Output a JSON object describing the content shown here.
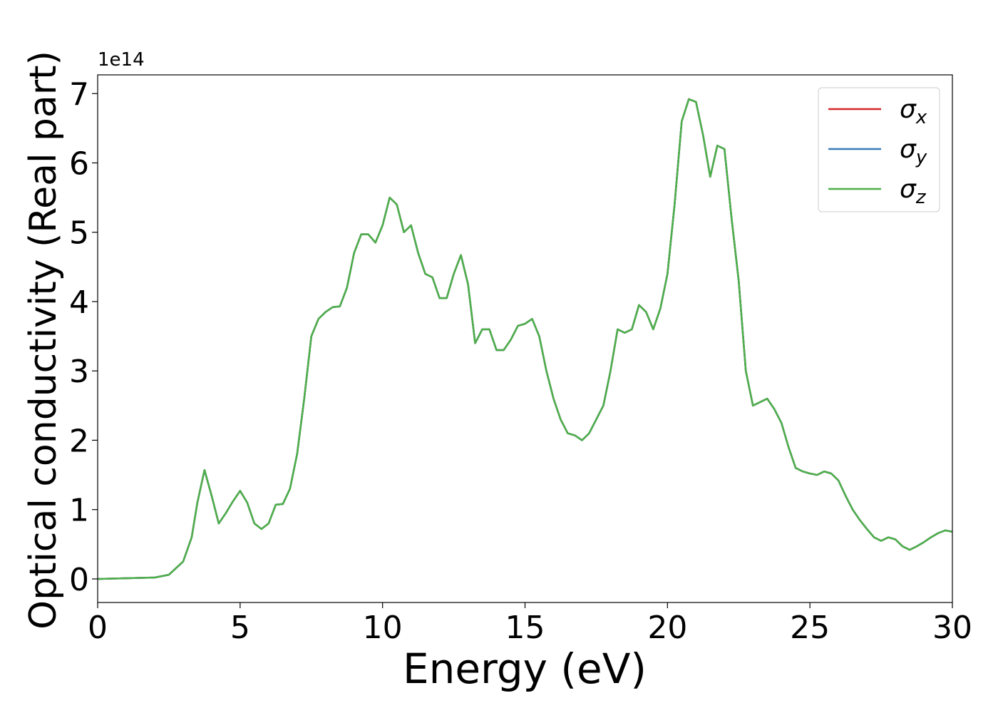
{
  "chart_data": {
    "type": "line",
    "xlabel": "Energy (eV)",
    "ylabel": "Optical conductivity (Real part)",
    "y_offset": "1e14",
    "x": [
      0,
      1,
      2,
      2.5,
      3,
      3.3,
      3.5,
      3.75,
      4,
      4.25,
      4.5,
      4.75,
      5,
      5.25,
      5.5,
      5.75,
      6,
      6.25,
      6.5,
      6.75,
      7,
      7.25,
      7.5,
      7.75,
      8,
      8.25,
      8.5,
      8.75,
      9,
      9.25,
      9.5,
      9.75,
      10,
      10.25,
      10.5,
      10.75,
      11,
      11.25,
      11.5,
      11.75,
      12,
      12.25,
      12.5,
      12.75,
      13,
      13.25,
      13.5,
      13.75,
      14,
      14.25,
      14.5,
      14.75,
      15,
      15.25,
      15.5,
      15.75,
      16,
      16.25,
      16.5,
      16.75,
      17,
      17.25,
      17.5,
      17.75,
      18,
      18.25,
      18.5,
      18.75,
      19,
      19.25,
      19.5,
      19.75,
      20,
      20.25,
      20.5,
      20.75,
      21,
      21.25,
      21.5,
      21.75,
      22,
      22.25,
      22.5,
      22.75,
      23,
      23.25,
      23.5,
      23.75,
      24,
      24.25,
      24.5,
      24.75,
      25,
      25.25,
      25.5,
      25.75,
      26,
      26.25,
      26.5,
      26.75,
      27,
      27.25,
      27.5,
      27.75,
      28,
      28.25,
      28.5,
      28.75,
      29,
      29.25,
      29.5,
      29.75,
      30
    ],
    "series": [
      {
        "name": "σx",
        "color": "#d62728",
        "values": [
          0,
          0.01,
          0.02,
          0.06,
          0.25,
          0.6,
          1.1,
          1.57,
          1.2,
          0.8,
          0.95,
          1.12,
          1.27,
          1.1,
          0.8,
          0.72,
          0.8,
          1.07,
          1.08,
          1.3,
          1.8,
          2.6,
          3.5,
          3.75,
          3.85,
          3.92,
          3.93,
          4.2,
          4.7,
          4.97,
          4.97,
          4.85,
          5.1,
          5.5,
          5.4,
          5.0,
          5.1,
          4.7,
          4.4,
          4.35,
          4.05,
          4.05,
          4.4,
          4.67,
          4.25,
          3.4,
          3.6,
          3.6,
          3.3,
          3.3,
          3.45,
          3.65,
          3.68,
          3.75,
          3.5,
          3.0,
          2.6,
          2.3,
          2.1,
          2.07,
          2.0,
          2.1,
          2.3,
          2.5,
          3.0,
          3.6,
          3.55,
          3.6,
          3.95,
          3.85,
          3.6,
          3.9,
          4.4,
          5.4,
          6.6,
          6.92,
          6.88,
          6.4,
          5.8,
          6.25,
          6.2,
          5.2,
          4.3,
          3.0,
          2.5,
          2.55,
          2.6,
          2.45,
          2.25,
          1.9,
          1.6,
          1.55,
          1.52,
          1.5,
          1.55,
          1.52,
          1.42,
          1.2,
          1.0,
          0.85,
          0.72,
          0.6,
          0.55,
          0.6,
          0.57,
          0.47,
          0.42,
          0.47,
          0.53,
          0.6,
          0.66,
          0.7,
          0.68
        ]
      },
      {
        "name": "σy",
        "color": "#377eb8",
        "values": [
          0,
          0.01,
          0.02,
          0.06,
          0.25,
          0.6,
          1.1,
          1.57,
          1.2,
          0.8,
          0.95,
          1.12,
          1.27,
          1.1,
          0.8,
          0.72,
          0.8,
          1.07,
          1.08,
          1.3,
          1.8,
          2.6,
          3.5,
          3.75,
          3.85,
          3.92,
          3.93,
          4.2,
          4.7,
          4.97,
          4.97,
          4.85,
          5.1,
          5.5,
          5.4,
          5.0,
          5.1,
          4.7,
          4.4,
          4.35,
          4.05,
          4.05,
          4.4,
          4.67,
          4.25,
          3.4,
          3.6,
          3.6,
          3.3,
          3.3,
          3.45,
          3.65,
          3.68,
          3.75,
          3.5,
          3.0,
          2.6,
          2.3,
          2.1,
          2.07,
          2.0,
          2.1,
          2.3,
          2.5,
          3.0,
          3.6,
          3.55,
          3.6,
          3.95,
          3.85,
          3.6,
          3.9,
          4.4,
          5.4,
          6.6,
          6.92,
          6.88,
          6.4,
          5.8,
          6.25,
          6.2,
          5.2,
          4.3,
          3.0,
          2.5,
          2.55,
          2.6,
          2.45,
          2.25,
          1.9,
          1.6,
          1.55,
          1.52,
          1.5,
          1.55,
          1.52,
          1.42,
          1.2,
          1.0,
          0.85,
          0.72,
          0.6,
          0.55,
          0.6,
          0.57,
          0.47,
          0.42,
          0.47,
          0.53,
          0.6,
          0.66,
          0.7,
          0.68
        ]
      },
      {
        "name": "σz",
        "color": "#4daf4a",
        "values": [
          0,
          0.01,
          0.02,
          0.06,
          0.25,
          0.6,
          1.1,
          1.57,
          1.2,
          0.8,
          0.95,
          1.12,
          1.27,
          1.1,
          0.8,
          0.72,
          0.8,
          1.07,
          1.08,
          1.3,
          1.8,
          2.6,
          3.5,
          3.75,
          3.85,
          3.92,
          3.93,
          4.2,
          4.7,
          4.97,
          4.97,
          4.85,
          5.1,
          5.5,
          5.4,
          5.0,
          5.1,
          4.7,
          4.4,
          4.35,
          4.05,
          4.05,
          4.4,
          4.67,
          4.25,
          3.4,
          3.6,
          3.6,
          3.3,
          3.3,
          3.45,
          3.65,
          3.68,
          3.75,
          3.5,
          3.0,
          2.6,
          2.3,
          2.1,
          2.07,
          2.0,
          2.1,
          2.3,
          2.5,
          3.0,
          3.6,
          3.55,
          3.6,
          3.95,
          3.85,
          3.6,
          3.9,
          4.4,
          5.4,
          6.6,
          6.92,
          6.88,
          6.4,
          5.8,
          6.25,
          6.2,
          5.2,
          4.3,
          3.0,
          2.5,
          2.55,
          2.6,
          2.45,
          2.25,
          1.9,
          1.6,
          1.55,
          1.52,
          1.5,
          1.55,
          1.52,
          1.42,
          1.2,
          1.0,
          0.85,
          0.72,
          0.6,
          0.55,
          0.6,
          0.57,
          0.47,
          0.42,
          0.47,
          0.53,
          0.6,
          0.66,
          0.7,
          0.68
        ]
      }
    ],
    "xlim": [
      0,
      30
    ],
    "xticks": [
      0,
      5,
      10,
      15,
      20,
      25,
      30
    ],
    "ylim": [
      -0.34,
      7.27
    ],
    "yticks": [
      0,
      1,
      2,
      3,
      4,
      5,
      6,
      7
    ],
    "grid": false,
    "legend": "upper right"
  }
}
